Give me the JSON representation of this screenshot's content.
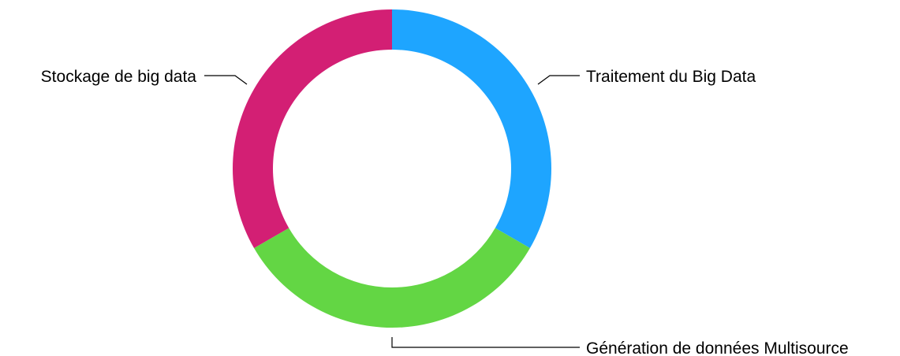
{
  "chart_data": {
    "type": "pie",
    "donut": true,
    "title": "",
    "slices": [
      {
        "label": "Traitement du Big Data",
        "value": 33.33,
        "color": "#1EA5FF"
      },
      {
        "label": "Génération de données Multisource",
        "value": 33.33,
        "color": "#63D644"
      },
      {
        "label": "Stockage de big data",
        "value": 33.33,
        "color": "#D31F74"
      }
    ],
    "start_angle_deg": 0,
    "direction": "clockwise",
    "legend": "none",
    "labels": "outside-with-leader-lines"
  }
}
